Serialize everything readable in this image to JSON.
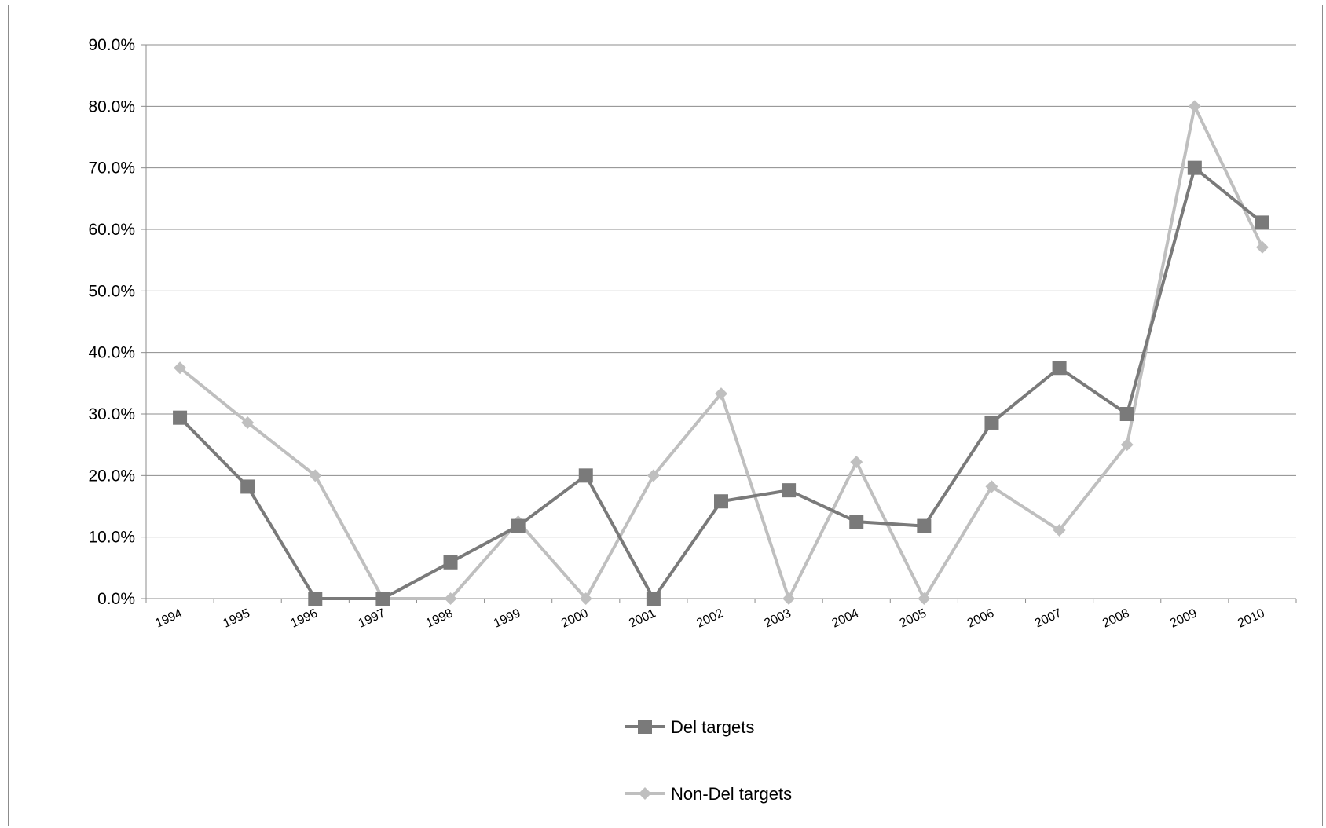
{
  "chart_data": {
    "type": "line",
    "title": "",
    "xlabel": "",
    "ylabel": "",
    "categories": [
      "1994",
      "1995",
      "1996",
      "1997",
      "1998",
      "1999",
      "2000",
      "2001",
      "2002",
      "2003",
      "2004",
      "2005",
      "2006",
      "2007",
      "2008",
      "2009",
      "2010"
    ],
    "ylim": [
      0,
      90
    ],
    "yticks": [
      0,
      10,
      20,
      30,
      40,
      50,
      60,
      70,
      80,
      90
    ],
    "y_tick_labels": [
      "0.0%",
      "10.0%",
      "20.0%",
      "30.0%",
      "40.0%",
      "50.0%",
      "60.0%",
      "70.0%",
      "80.0%",
      "90.0%"
    ],
    "grid": true,
    "legend_position": "bottom",
    "series": [
      {
        "name": "Del targets",
        "values": [
          29.4,
          18.2,
          0.0,
          0.0,
          5.9,
          11.8,
          20.0,
          0.0,
          15.8,
          17.6,
          12.5,
          11.8,
          28.6,
          37.5,
          30.0,
          70.0,
          61.1
        ],
        "color": "#7a7a7a",
        "marker": "square"
      },
      {
        "name": "Non-Del targets",
        "values": [
          37.5,
          28.6,
          20.0,
          0.0,
          0.0,
          12.5,
          0.0,
          20.0,
          33.3,
          0.0,
          22.2,
          0.0,
          18.2,
          11.1,
          25.0,
          80.0,
          57.1
        ],
        "color": "#bfbfbf",
        "marker": "diamond"
      }
    ]
  }
}
